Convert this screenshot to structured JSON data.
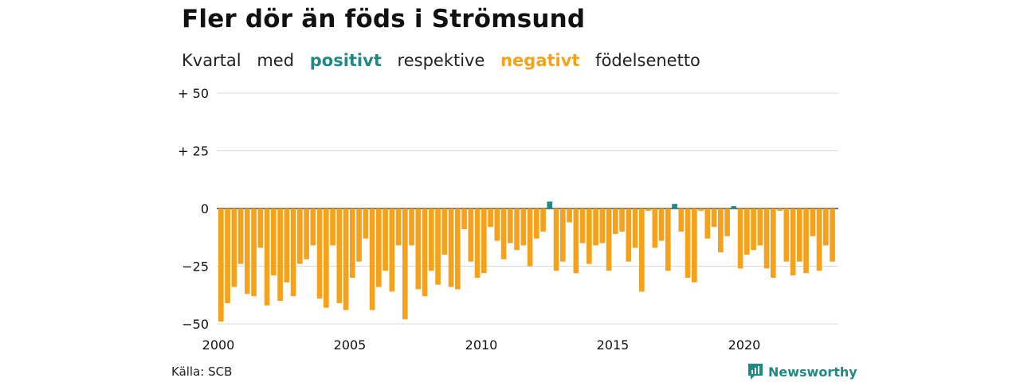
{
  "title": "Fler dör än föds i Strömsund",
  "subtitle": {
    "part1": "Kvartal",
    "part2": "med",
    "positive_word": "positivt",
    "part3": "respektive",
    "negative_word": "negativt",
    "part4": "födelsenetto"
  },
  "colors": {
    "positive": "#1f8a84",
    "negative": "#f5a21a",
    "grid": "#d9d9d9"
  },
  "source": "Källa: SCB",
  "brand": {
    "name": "Newsworthy",
    "icon": "newsworthy-logo-icon"
  },
  "chart_data": {
    "type": "bar",
    "x_start": "2000-Q1",
    "frequency": "quarterly",
    "ylim": [
      -50,
      50
    ],
    "y_ticks": [
      50,
      25,
      0,
      -25,
      -50
    ],
    "y_tick_labels": [
      "+ 50",
      "+ 25",
      "0",
      "−25",
      "−50"
    ],
    "x_ticks": [
      2000,
      2005,
      2010,
      2015,
      2020
    ],
    "x_tick_labels": [
      "2000",
      "2005",
      "2010",
      "2015",
      "2020"
    ],
    "grid": true,
    "values": [
      -49,
      -41,
      -34,
      -24,
      -37,
      -38,
      -17,
      -42,
      -29,
      -40,
      -32,
      -38,
      -24,
      -22,
      -16,
      -39,
      -43,
      -16,
      -41,
      -44,
      -30,
      -23,
      -13,
      -44,
      -34,
      -27,
      -36,
      -16,
      -48,
      -16,
      -35,
      -38,
      -27,
      -33,
      -20,
      -34,
      -35,
      -9,
      -23,
      -30,
      -28,
      -8,
      -14,
      -22,
      -15,
      -18,
      -16,
      -25,
      -13,
      -10,
      3,
      -27,
      -23,
      -6,
      -28,
      -15,
      -24,
      -16,
      -15,
      -27,
      -11,
      -10,
      -23,
      -17,
      -36,
      -1,
      -17,
      -14,
      -27,
      2,
      -10,
      -30,
      -32,
      -1,
      -13,
      -8,
      -19,
      -12,
      1,
      -26,
      -20,
      -18,
      -16,
      -26,
      -30,
      -1,
      -23,
      -29,
      -23,
      -28,
      -12,
      -27,
      -16,
      -23
    ]
  }
}
